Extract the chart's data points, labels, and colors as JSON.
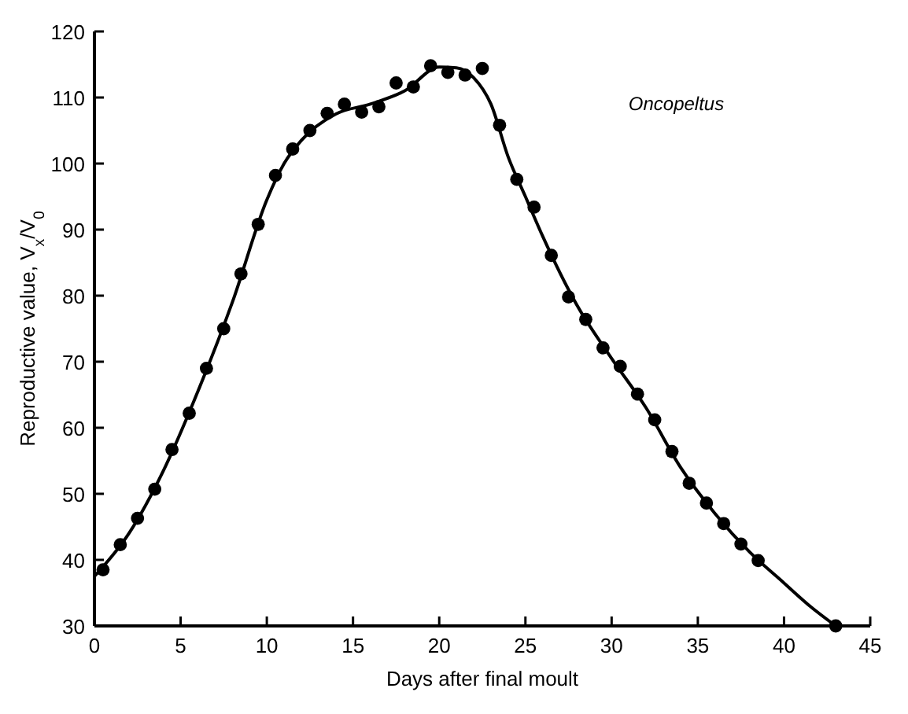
{
  "chart_data": {
    "type": "scatter",
    "xlabel": "Days after final moult",
    "ylabel": "Reproductive value, V$_{x}$/V$_{0}$",
    "annotations": [
      "Oncopeltus"
    ],
    "xlim": [
      0,
      45
    ],
    "ylim": [
      30,
      120
    ],
    "xticks": [
      0,
      5,
      10,
      15,
      20,
      25,
      30,
      35,
      40,
      45
    ],
    "yticks": [
      30,
      40,
      50,
      60,
      70,
      80,
      90,
      100,
      110,
      120
    ],
    "grid": false,
    "series": [
      {
        "marker": "circle",
        "color": "#000000",
        "x": [
          0.5,
          1.5,
          2.5,
          3.5,
          4.5,
          5.5,
          6.5,
          7.5,
          8.5,
          9.5,
          10.5,
          11.5,
          12.5,
          13.5,
          14.5,
          15.5,
          16.5,
          17.5,
          18.5,
          19.5,
          20.5,
          21.5,
          22.5,
          23.5,
          24.5,
          25.5,
          26.5,
          27.5,
          28.5,
          29.5,
          30.5,
          31.5,
          32.5,
          33.5,
          34.5,
          35.5,
          36.5,
          37.5,
          38.5,
          43
        ],
        "values": [
          38.5,
          42.3,
          46.3,
          50.7,
          56.7,
          62.2,
          69,
          75,
          83.3,
          90.8,
          98.2,
          102.2,
          105,
          107.6,
          109,
          107.8,
          108.6,
          112.2,
          111.6,
          114.8,
          113.8,
          113.4,
          114.4,
          105.8,
          97.6,
          93.4,
          86.1,
          79.8,
          76.4,
          72.1,
          69.3,
          65.1,
          61.2,
          56.4,
          51.6,
          48.6,
          45.5,
          42.4,
          39.9,
          30
        ]
      },
      {
        "type": "line",
        "color": "#000000",
        "line_style": "solid",
        "x": [
          0,
          2,
          4,
          6,
          8,
          10,
          11,
          12,
          14,
          16,
          18,
          20,
          21,
          22,
          23,
          24,
          25,
          26,
          28,
          30,
          32,
          34,
          36,
          38,
          40,
          41.5,
          43
        ],
        "values": [
          37.5,
          44,
          53.5,
          65.5,
          79,
          94.5,
          100,
          103.5,
          107.5,
          109,
          111,
          114.6,
          114.5,
          113,
          109,
          101,
          95,
          89,
          78.5,
          70.5,
          63,
          54,
          47,
          41.2,
          36.5,
          33,
          30
        ]
      }
    ]
  }
}
